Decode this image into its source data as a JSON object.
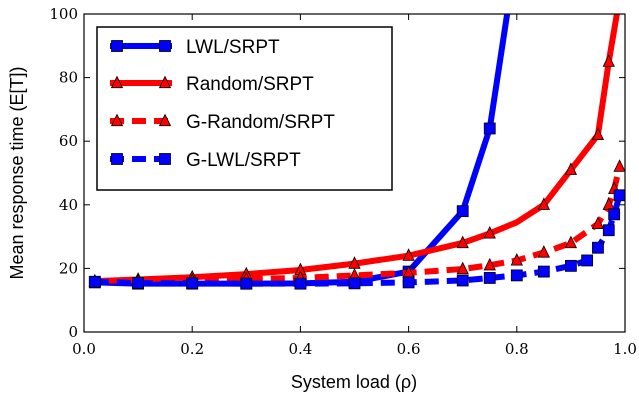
{
  "chart_data": {
    "type": "line",
    "xlabel": "System load (ρ)",
    "ylabel": "Mean response time (E[T])",
    "xlim": [
      0.0,
      1.0
    ],
    "ylim": [
      0,
      100
    ],
    "xticks": [
      "0.0",
      "0.2",
      "0.4",
      "0.6",
      "0.8",
      "1.0"
    ],
    "yticks": [
      "0",
      "20",
      "40",
      "60",
      "80",
      "100"
    ],
    "xtick_values": [
      0.0,
      0.2,
      0.4,
      0.6,
      0.8,
      1.0
    ],
    "ytick_values": [
      0,
      20,
      40,
      60,
      80,
      100
    ],
    "grid": false,
    "legend_position": "upper-left",
    "series": [
      {
        "name": "LWL/SRPT",
        "color": "#0000ff",
        "line_style": "solid",
        "marker": "square",
        "x": [
          0.02,
          0.1,
          0.2,
          0.3,
          0.4,
          0.5,
          0.6,
          0.7,
          0.75,
          0.8
        ],
        "y": [
          15.6,
          15.2,
          15.2,
          15.2,
          15.3,
          15.8,
          19,
          38,
          64,
          120
        ],
        "marker_x": [
          0.02,
          0.1,
          0.2,
          0.3,
          0.4,
          0.5,
          0.6,
          0.7,
          0.75
        ]
      },
      {
        "name": "Random/SRPT",
        "color": "#ff0000",
        "line_style": "solid",
        "marker": "triangle",
        "x": [
          0.02,
          0.1,
          0.2,
          0.3,
          0.4,
          0.5,
          0.6,
          0.7,
          0.75,
          0.8,
          0.85,
          0.9,
          0.95,
          0.97,
          0.99
        ],
        "y": [
          16,
          16.5,
          17.2,
          18.2,
          19.5,
          21.5,
          24,
          28,
          31,
          34.5,
          40,
          51,
          62,
          85,
          105
        ],
        "marker_x": [
          0.02,
          0.1,
          0.2,
          0.3,
          0.4,
          0.5,
          0.6,
          0.7,
          0.75,
          0.85,
          0.9,
          0.95,
          0.97
        ]
      },
      {
        "name": "G-Random/SRPT",
        "color": "#ff0000",
        "line_style": "dashed",
        "marker": "triangle",
        "x": [
          0.02,
          0.1,
          0.2,
          0.3,
          0.4,
          0.5,
          0.6,
          0.7,
          0.75,
          0.8,
          0.85,
          0.9,
          0.95,
          0.97,
          0.98,
          0.99
        ],
        "y": [
          15.8,
          16,
          16.2,
          16.6,
          17,
          17.8,
          18.6,
          19.8,
          21,
          22.5,
          25,
          28,
          34,
          40,
          45,
          52
        ],
        "marker_x": [
          0.02,
          0.1,
          0.2,
          0.3,
          0.4,
          0.5,
          0.6,
          0.7,
          0.75,
          0.8,
          0.85,
          0.9,
          0.95,
          0.97,
          0.98,
          0.99
        ]
      },
      {
        "name": "G-LWL/SRPT",
        "color": "#0000ff",
        "line_style": "dashed",
        "marker": "square",
        "x": [
          0.02,
          0.1,
          0.2,
          0.3,
          0.4,
          0.5,
          0.6,
          0.7,
          0.75,
          0.8,
          0.85,
          0.9,
          0.93,
          0.95,
          0.97,
          0.98,
          0.99
        ],
        "y": [
          15.8,
          15.4,
          15.3,
          15.2,
          15.2,
          15.3,
          15.6,
          16.2,
          17,
          17.8,
          19,
          20.8,
          22.5,
          26.5,
          32,
          37,
          43
        ],
        "marker_x": [
          0.02,
          0.1,
          0.2,
          0.3,
          0.4,
          0.5,
          0.6,
          0.7,
          0.75,
          0.8,
          0.85,
          0.9,
          0.93,
          0.95,
          0.97,
          0.98,
          0.99
        ]
      }
    ]
  }
}
